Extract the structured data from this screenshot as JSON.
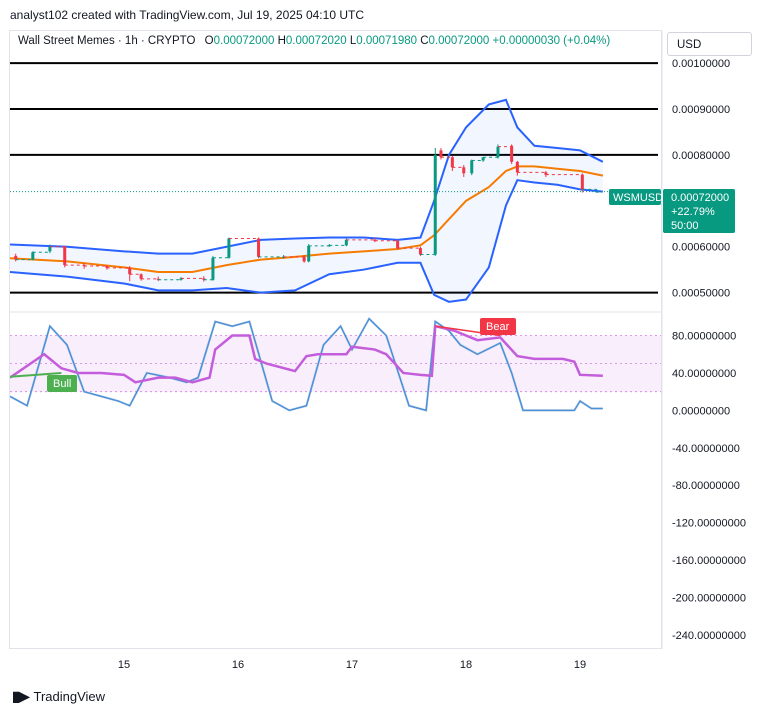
{
  "header": {
    "attribution": "analyst102 created with TradingView.com, Jul 19, 2025 04:10 UTC"
  },
  "legend": {
    "symbol": "Wall Street Memes · 1h · CRYPTO",
    "o_label": "O",
    "o_value": "0.00072000",
    "h_label": "H",
    "h_value": "0.00072020",
    "l_label": "L",
    "l_value": "0.00071980",
    "c_label": "C",
    "c_value": "0.00072000",
    "change": "+0.00000030 (+0.04%)"
  },
  "currency": "USD",
  "price_tag": {
    "symbol": "WSMUSD",
    "price": "0.00072000",
    "change": "+22.79%",
    "countdown": "50:00"
  },
  "stoch_labels": {
    "bull": "Bull",
    "bear": "Bear"
  },
  "footer": {
    "brand": "TradingView"
  },
  "colors": {
    "up": "#089981",
    "down": "#f23645",
    "band": "#2962ff",
    "basis": "#f57c00",
    "stoch_k": "#4a90d9",
    "stoch_d": "#c45ddb",
    "bull": "#4caf50",
    "bear": "#f23645"
  },
  "chart_data": [
    {
      "type": "candlestick",
      "title": "Wall Street Memes · 1h · CRYPTO",
      "ylim": [
        0.00046,
        0.00107
      ],
      "y_ticks": [
        "0.00100000",
        "0.00090000",
        "0.00080000",
        "0.00060000",
        "0.00050000"
      ],
      "y_tick_values": [
        0.001,
        0.0009,
        0.0008,
        0.0006,
        0.0005
      ],
      "x_ticks": [
        "15",
        "16",
        "17",
        "18",
        "19"
      ],
      "horizontal_lines": [
        0.001,
        0.0009,
        0.0008,
        0.0005
      ],
      "last_price": 0.00072,
      "candles": [
        {
          "t": 14.05,
          "o": 0.00058,
          "h": 0.000585,
          "c": 0.000572,
          "l": 0.000568
        },
        {
          "t": 14.2,
          "o": 0.000572,
          "h": 0.00059,
          "c": 0.000588,
          "l": 0.00057
        },
        {
          "t": 14.35,
          "o": 0.00059,
          "h": 0.000605,
          "c": 0.0006,
          "l": 0.000586
        },
        {
          "t": 14.48,
          "o": 0.0006,
          "h": 0.000602,
          "c": 0.00056,
          "l": 0.000555
        },
        {
          "t": 14.65,
          "o": 0.00056,
          "h": 0.000565,
          "c": 0.000558,
          "l": 0.000552
        },
        {
          "t": 14.85,
          "o": 0.000558,
          "h": 0.00056,
          "c": 0.000554,
          "l": 0.00055
        },
        {
          "t": 15.05,
          "o": 0.000554,
          "h": 0.000558,
          "c": 0.00054,
          "l": 0.000525
        },
        {
          "t": 15.15,
          "o": 0.00054,
          "h": 0.000542,
          "c": 0.00053,
          "l": 0.000526
        },
        {
          "t": 15.3,
          "o": 0.00053,
          "h": 0.000535,
          "c": 0.000528,
          "l": 0.000525
        },
        {
          "t": 15.5,
          "o": 0.000528,
          "h": 0.000534,
          "c": 0.000531,
          "l": 0.000526
        },
        {
          "t": 15.7,
          "o": 0.000531,
          "h": 0.000536,
          "c": 0.000528,
          "l": 0.000524
        },
        {
          "t": 15.78,
          "o": 0.000528,
          "h": 0.00058,
          "c": 0.000576,
          "l": 0.000526
        },
        {
          "t": 15.92,
          "o": 0.000576,
          "h": 0.00062,
          "c": 0.000618,
          "l": 0.000574
        },
        {
          "t": 16.18,
          "o": 0.000618,
          "h": 0.00062,
          "c": 0.000578,
          "l": 0.000575
        },
        {
          "t": 16.4,
          "o": 0.000578,
          "h": 0.000582,
          "c": 0.000578,
          "l": 0.000574
        },
        {
          "t": 16.58,
          "o": 0.000578,
          "h": 0.000582,
          "c": 0.000568,
          "l": 0.000565
        },
        {
          "t": 16.62,
          "o": 0.000568,
          "h": 0.000606,
          "c": 0.000602,
          "l": 0.000566
        },
        {
          "t": 16.8,
          "o": 0.000602,
          "h": 0.000606,
          "c": 0.000603,
          "l": 0.0006
        },
        {
          "t": 16.95,
          "o": 0.000603,
          "h": 0.000618,
          "c": 0.000615,
          "l": 0.000601
        },
        {
          "t": 17.2,
          "o": 0.000615,
          "h": 0.00062,
          "c": 0.000613,
          "l": 0.00061
        },
        {
          "t": 17.4,
          "o": 0.000613,
          "h": 0.000615,
          "c": 0.000597,
          "l": 0.000594
        },
        {
          "t": 17.6,
          "o": 0.000597,
          "h": 0.0006,
          "c": 0.000583,
          "l": 0.00058
        },
        {
          "t": 17.73,
          "o": 0.000583,
          "h": 0.000815,
          "c": 0.0008,
          "l": 0.00058
        },
        {
          "t": 17.78,
          "o": 0.00081,
          "h": 0.000815,
          "c": 0.000795,
          "l": 0.00079
        },
        {
          "t": 17.88,
          "o": 0.000795,
          "h": 0.000798,
          "c": 0.000773,
          "l": 0.000765
        },
        {
          "t": 17.98,
          "o": 0.000773,
          "h": 0.000778,
          "c": 0.00076,
          "l": 0.000752
        },
        {
          "t": 18.05,
          "o": 0.00076,
          "h": 0.00079,
          "c": 0.000788,
          "l": 0.000756
        },
        {
          "t": 18.15,
          "o": 0.000788,
          "h": 0.000795,
          "c": 0.000795,
          "l": 0.000785
        },
        {
          "t": 18.28,
          "o": 0.000795,
          "h": 0.000823,
          "c": 0.000818,
          "l": 0.000792
        },
        {
          "t": 18.4,
          "o": 0.00082,
          "h": 0.000823,
          "c": 0.000785,
          "l": 0.00078
        },
        {
          "t": 18.45,
          "o": 0.000785,
          "h": 0.000787,
          "c": 0.000762,
          "l": 0.000755
        },
        {
          "t": 18.7,
          "o": 0.000762,
          "h": 0.000765,
          "c": 0.000757,
          "l": 0.000752
        },
        {
          "t": 19.02,
          "o": 0.000757,
          "h": 0.00076,
          "c": 0.000725,
          "l": 0.000718
        },
        {
          "t": 19.15,
          "o": 0.00072,
          "h": 0.000721,
          "c": 0.00072,
          "l": 0.000719
        }
      ],
      "bollinger": {
        "t": [
          14.0,
          14.5,
          15.0,
          15.3,
          15.6,
          15.9,
          16.2,
          16.5,
          16.8,
          17.1,
          17.4,
          17.6,
          17.72,
          17.85,
          18.0,
          18.2,
          18.35,
          18.45,
          18.6,
          18.8,
          19.0,
          19.2
        ],
        "upper": [
          0.000605,
          0.0006,
          0.00059,
          0.000585,
          0.000585,
          0.0006,
          0.000615,
          0.000618,
          0.00062,
          0.00062,
          0.000615,
          0.00062,
          0.0007,
          0.0008,
          0.00086,
          0.00091,
          0.00092,
          0.00086,
          0.00082,
          0.000815,
          0.00081,
          0.000785
        ],
        "basis": [
          0.000575,
          0.000568,
          0.000555,
          0.000545,
          0.000545,
          0.00056,
          0.000572,
          0.000578,
          0.000585,
          0.00059,
          0.000595,
          0.000603,
          0.000625,
          0.00066,
          0.0007,
          0.00073,
          0.000765,
          0.000775,
          0.000775,
          0.00077,
          0.000765,
          0.000755
        ],
        "lower": [
          0.000545,
          0.000535,
          0.00052,
          0.000505,
          0.000505,
          0.00051,
          0.0005,
          0.000505,
          0.00054,
          0.00055,
          0.000565,
          0.000565,
          0.000495,
          0.00048,
          0.000485,
          0.000555,
          0.00069,
          0.000745,
          0.00074,
          0.000735,
          0.000725,
          0.00072
        ]
      }
    },
    {
      "type": "line",
      "title": "Stochastic RSI",
      "ylim": [
        -255,
        103
      ],
      "y_ticks": [
        "80.00000000",
        "40.00000000",
        "0.00000000",
        "-40.00000000",
        "-80.00000000",
        "-120.00000000",
        "-160.00000000",
        "-200.00000000",
        "-240.00000000"
      ],
      "y_tick_values": [
        80,
        40,
        0,
        -40,
        -80,
        -120,
        -160,
        -200,
        -240
      ],
      "bands": [
        80,
        20
      ],
      "x_ticks": [
        "15",
        "16",
        "17",
        "18",
        "19"
      ],
      "series": [
        {
          "t": [
            14.0,
            14.15,
            14.35,
            14.5,
            14.65,
            14.8,
            14.95,
            15.05,
            15.2,
            15.4,
            15.55,
            15.65,
            15.8,
            15.95,
            16.1,
            16.3,
            16.45,
            16.6,
            16.75,
            16.9,
            17.0,
            17.15,
            17.3,
            17.5,
            17.65,
            17.73,
            17.85,
            17.95,
            18.1,
            18.3,
            18.4,
            18.5,
            18.7,
            18.95,
            19.0,
            19.1,
            19.2
          ],
          "values": [
            15,
            5,
            90,
            70,
            20,
            15,
            10,
            5,
            40,
            35,
            30,
            35,
            95,
            90,
            95,
            10,
            0,
            5,
            70,
            90,
            65,
            98,
            80,
            5,
            0,
            95,
            85,
            70,
            60,
            72,
            40,
            0,
            0,
            0,
            10,
            2,
            2
          ]
        },
        {
          "t": [
            14.0,
            14.3,
            14.45,
            14.6,
            14.8,
            15.0,
            15.1,
            15.3,
            15.45,
            15.6,
            15.75,
            15.8,
            15.95,
            16.1,
            16.15,
            16.25,
            16.5,
            16.6,
            16.7,
            16.95,
            17.0,
            17.2,
            17.3,
            17.45,
            17.6,
            17.7,
            17.73,
            17.9,
            18.1,
            18.3,
            18.45,
            18.6,
            18.85,
            18.95,
            19.0,
            19.2
          ],
          "values": [
            35,
            60,
            45,
            40,
            40,
            38,
            30,
            35,
            35,
            30,
            35,
            65,
            80,
            80,
            55,
            50,
            42,
            58,
            60,
            60,
            68,
            65,
            60,
            40,
            38,
            37,
            90,
            85,
            75,
            78,
            58,
            55,
            55,
            52,
            38,
            37
          ]
        }
      ]
    }
  ]
}
